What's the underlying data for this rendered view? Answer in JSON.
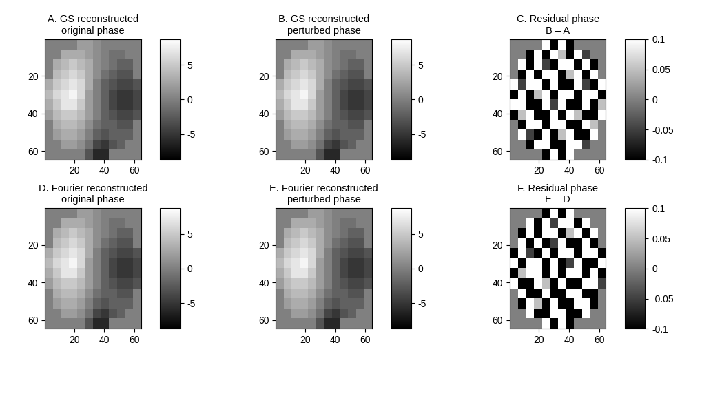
{
  "chart_data": [
    {
      "type": "heatmap",
      "title": "A. GS reconstructed\noriginal phase",
      "xlim": [
        0.5,
        64.5
      ],
      "ylim": [
        64.5,
        0.5
      ],
      "xticks": [
        20,
        40,
        60
      ],
      "yticks": [
        20,
        40,
        60
      ],
      "color_range": [
        -8.7,
        8.7
      ],
      "color_ticks": [
        -5,
        0,
        5
      ],
      "cells": [
        [
          0,
          0,
          0,
          0,
          2,
          2,
          1,
          0,
          0,
          0,
          0,
          0
        ],
        [
          0,
          0,
          3,
          3,
          3,
          2,
          1,
          0,
          -1,
          -1,
          0,
          0
        ],
        [
          0,
          3,
          4,
          5,
          4,
          3,
          1,
          0,
          -1,
          -2,
          -2,
          0
        ],
        [
          0,
          4,
          5,
          6,
          5,
          3,
          1,
          -1,
          -2,
          -3,
          -3,
          0
        ],
        [
          3,
          5,
          6,
          7,
          6,
          3,
          0,
          -2,
          -3,
          -4,
          -4,
          -3
        ],
        [
          4,
          6,
          7,
          8,
          6,
          2,
          0,
          -2,
          -4,
          -5,
          -5,
          -4
        ],
        [
          3,
          5,
          7,
          7,
          5,
          2,
          0,
          -2,
          -4,
          -5,
          -5,
          -4
        ],
        [
          2,
          4,
          5,
          5,
          4,
          2,
          0,
          -2,
          -3,
          -4,
          -4,
          -3
        ],
        [
          0,
          3,
          4,
          4,
          3,
          1,
          -1,
          -2,
          -2,
          -3,
          -3,
          0
        ],
        [
          0,
          2,
          3,
          3,
          2,
          0,
          -2,
          -3,
          -2,
          -2,
          -2,
          0
        ],
        [
          0,
          0,
          2,
          2,
          1,
          -1,
          -4,
          -5,
          -3,
          -2,
          0,
          0
        ],
        [
          0,
          0,
          0,
          0,
          0,
          -3,
          -6,
          -6,
          0,
          0,
          0,
          0
        ]
      ]
    },
    {
      "type": "heatmap",
      "title": "B. GS reconstructed\nperturbed phase",
      "xlim": [
        0.5,
        64.5
      ],
      "ylim": [
        64.5,
        0.5
      ],
      "xticks": [
        20,
        40,
        60
      ],
      "yticks": [
        20,
        40,
        60
      ],
      "color_range": [
        -8.7,
        8.7
      ],
      "color_ticks": [
        -5,
        0,
        5
      ],
      "cells": [
        [
          0,
          0,
          0,
          0,
          2,
          2,
          1,
          0,
          0,
          0,
          0,
          0
        ],
        [
          0,
          0,
          3,
          3,
          3,
          2,
          1,
          0,
          -1,
          -1,
          0,
          0
        ],
        [
          0,
          3,
          4,
          5,
          4,
          3,
          1,
          0,
          -1,
          -2,
          -2,
          0
        ],
        [
          0,
          4,
          5,
          6,
          5,
          3,
          1,
          -1,
          -2,
          -3,
          -3,
          0
        ],
        [
          3,
          5,
          6,
          7,
          6,
          3,
          0,
          -2,
          -3,
          -4,
          -4,
          -3
        ],
        [
          4,
          6,
          7,
          8,
          6,
          2,
          0,
          -2,
          -4,
          -5,
          -5,
          -4
        ],
        [
          3,
          5,
          7,
          7,
          5,
          2,
          0,
          -2,
          -4,
          -5,
          -5,
          -4
        ],
        [
          2,
          4,
          5,
          5,
          4,
          2,
          0,
          -2,
          -3,
          -4,
          -4,
          -3
        ],
        [
          0,
          3,
          4,
          4,
          3,
          1,
          -1,
          -2,
          -2,
          -3,
          -3,
          0
        ],
        [
          0,
          2,
          3,
          3,
          2,
          0,
          -2,
          -3,
          -2,
          -2,
          -2,
          0
        ],
        [
          0,
          0,
          2,
          2,
          1,
          -1,
          -4,
          -5,
          -3,
          -2,
          0,
          0
        ],
        [
          0,
          0,
          0,
          0,
          0,
          -3,
          -6,
          -6,
          0,
          0,
          0,
          0
        ]
      ]
    },
    {
      "type": "heatmap",
      "title": "C. Residual phase\nB – A",
      "xlim": [
        0.5,
        64.5
      ],
      "ylim": [
        64.5,
        0.5
      ],
      "xticks": [
        20,
        40,
        60
      ],
      "yticks": [
        20,
        40,
        60
      ],
      "color_range": [
        -0.1,
        0.1
      ],
      "color_ticks": [
        -0.1,
        -0.05,
        0,
        0.05,
        0.1
      ],
      "cells": [
        [
          0,
          0,
          0,
          0,
          0.1,
          -0.1,
          0.1,
          -0.1,
          0,
          0,
          0,
          0
        ],
        [
          0,
          0,
          -0.1,
          0.1,
          -0.1,
          0.1,
          0.05,
          -0.1,
          0.1,
          -0.05,
          0,
          0
        ],
        [
          0,
          0.1,
          -0.1,
          0.1,
          -0.05,
          -0.1,
          0.1,
          0.1,
          -0.1,
          0.1,
          -0.1,
          0
        ],
        [
          0,
          -0.1,
          0.1,
          -0.1,
          0.1,
          0.1,
          -0.1,
          0.05,
          0.1,
          -0.1,
          0.1,
          0
        ],
        [
          0.1,
          -0.05,
          0.1,
          0.1,
          -0.1,
          0.1,
          -0.1,
          -0.1,
          0.1,
          -0.05,
          -0.1,
          0.1
        ],
        [
          -0.1,
          0.1,
          -0.1,
          0.05,
          0.1,
          -0.1,
          0.1,
          0.1,
          -0.1,
          0.1,
          0.1,
          -0.1
        ],
        [
          0.1,
          0.1,
          -0.1,
          -0.1,
          0.1,
          -0.05,
          0.1,
          -0.1,
          -0.1,
          0.1,
          -0.1,
          0.05
        ],
        [
          -0.1,
          0.05,
          0.1,
          -0.1,
          -0.1,
          0.1,
          -0.1,
          0.1,
          0.05,
          -0.1,
          -0.1,
          0.1
        ],
        [
          0,
          -0.1,
          0.1,
          0.1,
          -0.1,
          0.1,
          0.1,
          -0.1,
          -0.1,
          0.1,
          0.05,
          0
        ],
        [
          0,
          0.1,
          -0.05,
          -0.1,
          0.1,
          -0.1,
          0.05,
          0.1,
          -0.1,
          -0.1,
          0.1,
          0
        ],
        [
          0,
          0,
          -0.1,
          0.1,
          0.1,
          -0.1,
          -0.1,
          0.1,
          0.1,
          -0.05,
          0,
          0
        ],
        [
          0,
          0,
          0,
          0,
          -0.1,
          0.1,
          -0.1,
          0.1,
          0,
          0,
          0,
          0
        ]
      ]
    },
    {
      "type": "heatmap",
      "title": "D. Fourier reconstructed\noriginal phase",
      "xlim": [
        0.5,
        64.5
      ],
      "ylim": [
        64.5,
        0.5
      ],
      "xticks": [
        20,
        40,
        60
      ],
      "yticks": [
        20,
        40,
        60
      ],
      "color_range": [
        -8.7,
        8.7
      ],
      "color_ticks": [
        -5,
        0,
        5
      ],
      "cells": [
        [
          0,
          0,
          0,
          0,
          2,
          2,
          1,
          0,
          0,
          0,
          0,
          0
        ],
        [
          0,
          0,
          3,
          3,
          3,
          2,
          1,
          0,
          -1,
          -1,
          0,
          0
        ],
        [
          0,
          3,
          4,
          5,
          4,
          3,
          1,
          0,
          -1,
          -2,
          -2,
          0
        ],
        [
          0,
          4,
          5,
          6,
          5,
          3,
          1,
          -1,
          -2,
          -3,
          -3,
          0
        ],
        [
          3,
          5,
          6,
          7,
          6,
          3,
          0,
          -2,
          -3,
          -4,
          -4,
          -3
        ],
        [
          4,
          6,
          7,
          8,
          6,
          2,
          0,
          -2,
          -4,
          -5,
          -5,
          -4
        ],
        [
          3,
          5,
          7,
          7,
          5,
          2,
          0,
          -2,
          -4,
          -5,
          -5,
          -4
        ],
        [
          2,
          4,
          5,
          5,
          4,
          2,
          0,
          -2,
          -3,
          -4,
          -4,
          -3
        ],
        [
          0,
          3,
          4,
          4,
          3,
          1,
          -1,
          -2,
          -2,
          -3,
          -3,
          0
        ],
        [
          0,
          2,
          3,
          3,
          2,
          0,
          -2,
          -3,
          -2,
          -2,
          -2,
          0
        ],
        [
          0,
          0,
          2,
          2,
          1,
          -1,
          -4,
          -5,
          -3,
          -2,
          0,
          0
        ],
        [
          0,
          0,
          0,
          0,
          0,
          -3,
          -6,
          -6,
          0,
          0,
          0,
          0
        ]
      ]
    },
    {
      "type": "heatmap",
      "title": "E. Fourier reconstructed\nperturbed phase",
      "xlim": [
        0.5,
        64.5
      ],
      "ylim": [
        64.5,
        0.5
      ],
      "xticks": [
        20,
        40,
        60
      ],
      "yticks": [
        20,
        40,
        60
      ],
      "color_range": [
        -8.7,
        8.7
      ],
      "color_ticks": [
        -5,
        0,
        5
      ],
      "cells": [
        [
          0,
          0,
          0,
          0,
          2,
          2,
          1,
          0,
          0,
          0,
          0,
          0
        ],
        [
          0,
          0,
          3,
          3,
          3,
          2,
          1,
          0,
          -1,
          -1,
          0,
          0
        ],
        [
          0,
          3,
          4,
          5,
          4,
          3,
          1,
          0,
          -1,
          -2,
          -2,
          0
        ],
        [
          0,
          4,
          5,
          6,
          5,
          3,
          1,
          -1,
          -2,
          -3,
          -3,
          0
        ],
        [
          3,
          5,
          6,
          7,
          6,
          3,
          0,
          -2,
          -3,
          -4,
          -4,
          -3
        ],
        [
          4,
          6,
          7,
          8,
          6,
          2,
          0,
          -2,
          -4,
          -5,
          -5,
          -4
        ],
        [
          3,
          5,
          7,
          7,
          5,
          2,
          0,
          -2,
          -4,
          -5,
          -5,
          -4
        ],
        [
          2,
          4,
          5,
          5,
          4,
          2,
          0,
          -2,
          -3,
          -4,
          -4,
          -3
        ],
        [
          0,
          3,
          4,
          4,
          3,
          1,
          -1,
          -2,
          -2,
          -3,
          -3,
          0
        ],
        [
          0,
          2,
          3,
          3,
          2,
          0,
          -2,
          -3,
          -2,
          -2,
          -2,
          0
        ],
        [
          0,
          0,
          2,
          2,
          1,
          -1,
          -4,
          -5,
          -3,
          -2,
          0,
          0
        ],
        [
          0,
          0,
          0,
          0,
          0,
          -3,
          -6,
          -6,
          0,
          0,
          0,
          0
        ]
      ]
    },
    {
      "type": "heatmap",
      "title": "F. Residual phase\nE – D",
      "xlim": [
        0.5,
        64.5
      ],
      "ylim": [
        64.5,
        0.5
      ],
      "xticks": [
        20,
        40,
        60
      ],
      "yticks": [
        20,
        40,
        60
      ],
      "color_range": [
        -0.1,
        0.1
      ],
      "color_ticks": [
        -0.1,
        -0.05,
        0,
        0.05,
        0.1
      ],
      "cells": [
        [
          0,
          0,
          0,
          0,
          -0.1,
          0.1,
          -0.1,
          0.1,
          0,
          0,
          0,
          0
        ],
        [
          0,
          0,
          0.1,
          -0.1,
          0.1,
          -0.05,
          0.1,
          0.1,
          -0.1,
          0.1,
          0,
          0
        ],
        [
          0,
          -0.1,
          0.1,
          -0.1,
          0.1,
          0.1,
          -0.1,
          0.05,
          0.1,
          -0.1,
          0.1,
          0
        ],
        [
          0,
          0.1,
          -0.1,
          0.1,
          -0.1,
          -0.05,
          0.1,
          -0.1,
          -0.1,
          0.1,
          -0.1,
          0
        ],
        [
          -0.1,
          0.1,
          -0.05,
          -0.1,
          0.1,
          -0.1,
          0.1,
          0.1,
          -0.1,
          0.1,
          0.1,
          -0.1
        ],
        [
          0.1,
          -0.1,
          0.1,
          0.1,
          -0.1,
          0.1,
          -0.1,
          -0.05,
          0.1,
          -0.1,
          -0.1,
          0.1
        ],
        [
          -0.1,
          0.05,
          0.1,
          0.1,
          -0.1,
          0.1,
          -0.1,
          0.1,
          0.1,
          -0.1,
          0.1,
          -0.1
        ],
        [
          0.1,
          -0.1,
          -0.1,
          0.1,
          0.05,
          -0.1,
          0.1,
          -0.1,
          -0.1,
          0.1,
          0.1,
          -0.05
        ],
        [
          0,
          0.1,
          -0.1,
          -0.1,
          0.1,
          -0.1,
          -0.1,
          0.1,
          0.1,
          -0.1,
          -0.1,
          0
        ],
        [
          0,
          -0.1,
          0.1,
          0.05,
          -0.1,
          0.1,
          -0.1,
          -0.1,
          0.1,
          0.1,
          -0.1,
          0
        ],
        [
          0,
          0,
          0.1,
          -0.1,
          -0.1,
          0.1,
          0.1,
          -0.1,
          -0.1,
          0.1,
          0,
          0
        ],
        [
          0,
          0,
          0,
          0,
          0.1,
          -0.1,
          0.1,
          -0.1,
          0,
          0,
          0,
          0
        ]
      ]
    }
  ]
}
